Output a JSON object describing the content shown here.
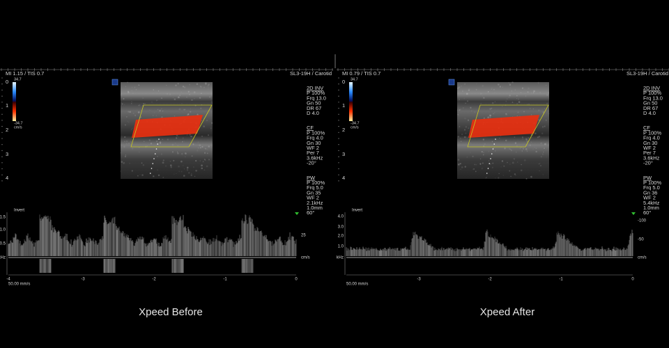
{
  "panels": [
    {
      "header": {
        "left": "MI 1.15 / TIS 0.7",
        "right": "SL3-19H / Carotid"
      },
      "depth_labels": [
        "0",
        "1",
        "2",
        "3",
        "4"
      ],
      "color_bar": {
        "top": "34.7",
        "bottom": "-34.7",
        "unit": "cm/s"
      },
      "settings": [
        {
          "title": "2D INV",
          "items": [
            "P 100%",
            "Frq 13.0",
            "Gn 50",
            "DR 67",
            "D 4.0"
          ]
        },
        {
          "title": "CF",
          "items": [
            "P 100%",
            "Frq 4.0",
            "Gn 30",
            "WF 2",
            "Per 7",
            "3.6kHz",
            "-20°"
          ]
        },
        {
          "title": "PW",
          "items": [
            "P 100%",
            "Frq 5.0",
            "Gn 35",
            "WF 2",
            "2.1kHz",
            "1.0mm",
            "60°"
          ]
        }
      ],
      "doppler": {
        "label": "Invert",
        "left_axis": [
          "1.5",
          "1.0",
          "0.5",
          "kHz"
        ],
        "right_axis": [
          "25",
          "cm/s"
        ],
        "time_axis": [
          "-4",
          "-3",
          "-2",
          "-1",
          "0"
        ],
        "sweep": "50.00 mm/s"
      },
      "caption": "Xpeed Before"
    },
    {
      "header": {
        "left": "MI 0.79 / TIS 0.7",
        "right": "SL3-19H / Carotid"
      },
      "depth_labels": [
        "0",
        "1",
        "2",
        "3",
        "4"
      ],
      "color_bar": {
        "top": "34.7",
        "bottom": "-34.7",
        "unit": "cm/s"
      },
      "settings": [
        {
          "title": "2D INV",
          "items": [
            "P 100%",
            "Frq 13.0",
            "Gn 50",
            "DR 67",
            "D 4.0"
          ]
        },
        {
          "title": "CF",
          "items": [
            "P 100%",
            "Frq 4.0",
            "Gn 30",
            "WF 2",
            "Per 7",
            "3.6kHz",
            "-20°"
          ]
        },
        {
          "title": "PW",
          "items": [
            "P 100%",
            "Frq 5.0",
            "Gn 36",
            "WF 2",
            "5.4kHz",
            "1.0mm",
            "60°"
          ]
        }
      ],
      "doppler": {
        "label": "Invert",
        "left_axis": [
          "4.0",
          "3.0",
          "2.0",
          "1.0",
          "kHz"
        ],
        "right_axis": [
          "-100",
          "-50",
          "cm/s"
        ],
        "time_axis": [
          "-3",
          "-2",
          "-1",
          "0"
        ],
        "sweep": "50.00 mm/s"
      },
      "caption": "Xpeed After"
    }
  ]
}
